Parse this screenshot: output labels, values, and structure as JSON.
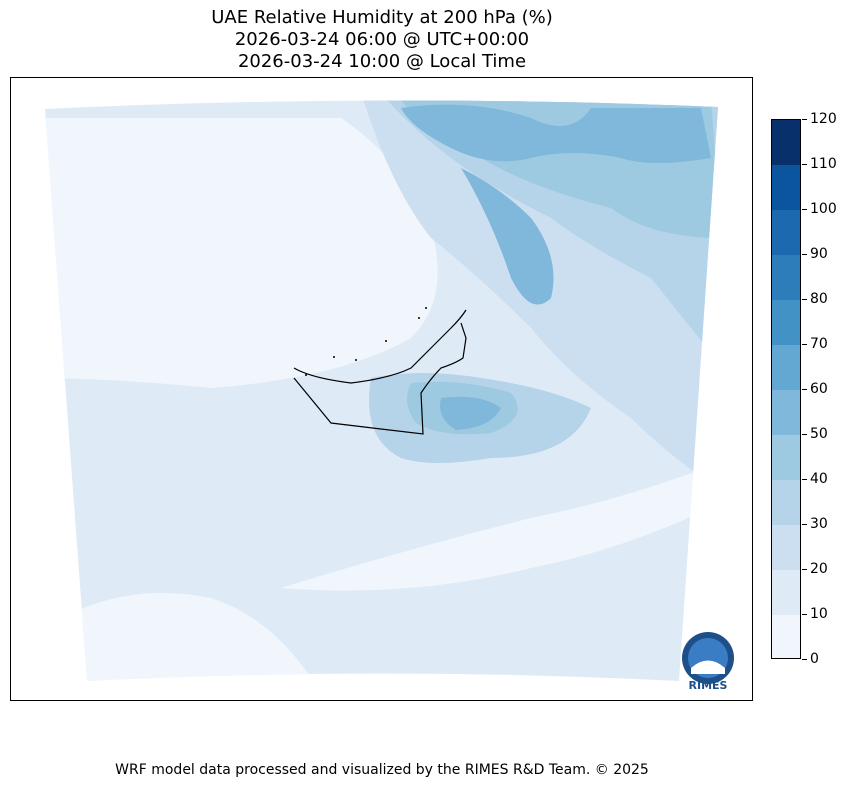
{
  "title": {
    "line1": "UAE Relative Humidity at 200 hPa (%)",
    "line2": "2026-03-24 06:00 @ UTC+00:00",
    "line3": "2026-03-24 10:00 @ Local Time"
  },
  "colorbar": {
    "ticks": [
      "0",
      "10",
      "20",
      "30",
      "40",
      "50",
      "60",
      "70",
      "80",
      "90",
      "100",
      "110",
      "120"
    ],
    "colors": [
      "#f0f6fc",
      "#deebf7",
      "#ccdff1",
      "#b5d3e9",
      "#9ecae1",
      "#7fb8da",
      "#62a8d3",
      "#4292c6",
      "#2d7dbb",
      "#1c69b0",
      "#0b559f",
      "#08306b"
    ]
  },
  "logo": {
    "text": "RIMES"
  },
  "footer": "WRF model data processed and visualized by the RIMES R&D Team. © 2025"
}
